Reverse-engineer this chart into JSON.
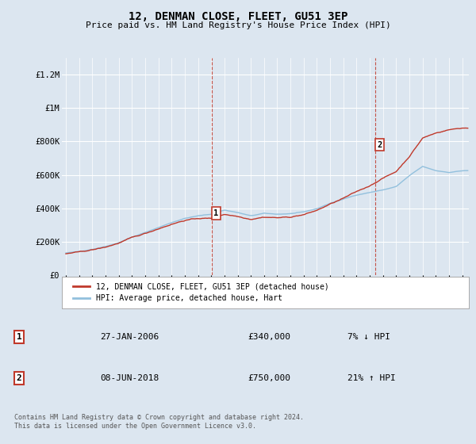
{
  "title": "12, DENMAN CLOSE, FLEET, GU51 3EP",
  "subtitle": "Price paid vs. HM Land Registry's House Price Index (HPI)",
  "background_color": "#dce6f0",
  "ylabel_ticks": [
    "£0",
    "£200K",
    "£400K",
    "£600K",
    "£800K",
    "£1M",
    "£1.2M"
  ],
  "ytick_values": [
    0,
    200000,
    400000,
    600000,
    800000,
    1000000,
    1200000
  ],
  "ylim": [
    0,
    1300000
  ],
  "xlim_start": 1994.7,
  "xlim_end": 2025.5,
  "hpi_line_color": "#92c0dd",
  "price_line_color": "#c0392b",
  "sale1_x": 2006.07,
  "sale1_y": 340000,
  "sale1_label": "1",
  "sale2_x": 2018.44,
  "sale2_y": 750000,
  "sale2_label": "2",
  "vline_color": "#c0392b",
  "legend_line1": "12, DENMAN CLOSE, FLEET, GU51 3EP (detached house)",
  "legend_line2": "HPI: Average price, detached house, Hart",
  "table_row1": [
    "1",
    "27-JAN-2006",
    "£340,000",
    "7% ↓ HPI"
  ],
  "table_row2": [
    "2",
    "08-JUN-2018",
    "£750,000",
    "21% ↑ HPI"
  ],
  "footer": "Contains HM Land Registry data © Crown copyright and database right 2024.\nThis data is licensed under the Open Government Licence v3.0.",
  "xtick_years": [
    1995,
    1996,
    1997,
    1998,
    1999,
    2000,
    2001,
    2002,
    2003,
    2004,
    2005,
    2006,
    2007,
    2008,
    2009,
    2010,
    2011,
    2012,
    2013,
    2014,
    2015,
    2016,
    2017,
    2018,
    2019,
    2020,
    2021,
    2022,
    2023,
    2024,
    2025
  ]
}
